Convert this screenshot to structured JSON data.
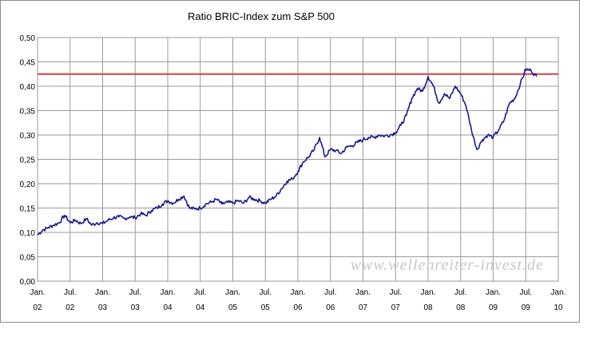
{
  "chart_data": {
    "type": "line",
    "title": "Ratio BRIC-Index zum S&P 500",
    "xlabel": "",
    "ylabel": "",
    "ylim": [
      0.0,
      0.5
    ],
    "yticks": [
      "0,00",
      "0,05",
      "0,10",
      "0,15",
      "0,20",
      "0,25",
      "0,30",
      "0,35",
      "0,40",
      "0,45",
      "0,50"
    ],
    "xticks": [
      {
        "line1": "Jan.",
        "line2": "02"
      },
      {
        "line1": "Jul.",
        "line2": "02"
      },
      {
        "line1": "Jan.",
        "line2": "03"
      },
      {
        "line1": "Jul.",
        "line2": "03"
      },
      {
        "line1": "Jan.",
        "line2": "04"
      },
      {
        "line1": "Jul.",
        "line2": "04"
      },
      {
        "line1": "Jan.",
        "line2": "05"
      },
      {
        "line1": "Jul.",
        "line2": "05"
      },
      {
        "line1": "Jan.",
        "line2": "06"
      },
      {
        "line1": "Jul.",
        "line2": "06"
      },
      {
        "line1": "Jan.",
        "line2": "07"
      },
      {
        "line1": "Jul.",
        "line2": "07"
      },
      {
        "line1": "Jan.",
        "line2": "08"
      },
      {
        "line1": "Jul.",
        "line2": "08"
      },
      {
        "line1": "Jan.",
        "line2": "09"
      },
      {
        "line1": "Jul.",
        "line2": "09"
      },
      {
        "line1": "Jan.",
        "line2": "10"
      }
    ],
    "grid": true,
    "reference_line": {
      "y": 0.425,
      "color": "#e03c3c"
    },
    "series": [
      {
        "color": "#1a1a8c",
        "points": [
          [
            "Jan. 02",
            0.095
          ],
          [
            "Feb. 02",
            0.105
          ],
          [
            "Mar. 02",
            0.11
          ],
          [
            "Apr. 02",
            0.115
          ],
          [
            "May 02",
            0.12
          ],
          [
            "Jun. 02",
            0.135
          ],
          [
            "Jul. 02",
            0.12
          ],
          [
            "Aug. 02",
            0.125
          ],
          [
            "Sep. 02",
            0.118
          ],
          [
            "Oct. 02",
            0.128
          ],
          [
            "Nov. 02",
            0.115
          ],
          [
            "Dec. 02",
            0.12
          ],
          [
            "Jan. 03",
            0.118
          ],
          [
            "Feb. 03",
            0.125
          ],
          [
            "Mar. 03",
            0.13
          ],
          [
            "Apr. 03",
            0.132
          ],
          [
            "May 03",
            0.128
          ],
          [
            "Jun. 03",
            0.132
          ],
          [
            "Jul. 03",
            0.13
          ],
          [
            "Aug. 03",
            0.138
          ],
          [
            "Sep. 03",
            0.135
          ],
          [
            "Oct. 03",
            0.145
          ],
          [
            "Nov. 03",
            0.15
          ],
          [
            "Dec. 03",
            0.158
          ],
          [
            "Jan. 04",
            0.165
          ],
          [
            "Feb. 04",
            0.16
          ],
          [
            "Mar. 04",
            0.168
          ],
          [
            "Apr. 04",
            0.175
          ],
          [
            "May 04",
            0.15
          ],
          [
            "Jun. 04",
            0.148
          ],
          [
            "Jul. 04",
            0.15
          ],
          [
            "Aug. 04",
            0.158
          ],
          [
            "Sep. 04",
            0.162
          ],
          [
            "Oct. 04",
            0.168
          ],
          [
            "Nov. 04",
            0.158
          ],
          [
            "Dec. 04",
            0.162
          ],
          [
            "Jan. 05",
            0.16
          ],
          [
            "Feb. 05",
            0.165
          ],
          [
            "Mar. 05",
            0.16
          ],
          [
            "Apr. 05",
            0.172
          ],
          [
            "May 05",
            0.168
          ],
          [
            "Jun. 05",
            0.165
          ],
          [
            "Jul. 05",
            0.16
          ],
          [
            "Aug. 05",
            0.168
          ],
          [
            "Sep. 05",
            0.175
          ],
          [
            "Oct. 05",
            0.19
          ],
          [
            "Nov. 05",
            0.205
          ],
          [
            "Dec. 05",
            0.21
          ],
          [
            "Jan. 06",
            0.225
          ],
          [
            "Feb. 06",
            0.245
          ],
          [
            "Mar. 06",
            0.255
          ],
          [
            "Apr. 06",
            0.27
          ],
          [
            "May 06",
            0.295
          ],
          [
            "Jun. 06",
            0.255
          ],
          [
            "Jul. 06",
            0.27
          ],
          [
            "Aug. 06",
            0.268
          ],
          [
            "Sep. 06",
            0.262
          ],
          [
            "Oct. 06",
            0.275
          ],
          [
            "Nov. 06",
            0.278
          ],
          [
            "Dec. 06",
            0.285
          ],
          [
            "Jan. 07",
            0.29
          ],
          [
            "Feb. 07",
            0.295
          ],
          [
            "Mar. 07",
            0.295
          ],
          [
            "Apr. 07",
            0.3
          ],
          [
            "May 07",
            0.298
          ],
          [
            "Jun. 07",
            0.3
          ],
          [
            "Jul. 07",
            0.305
          ],
          [
            "Aug. 07",
            0.32
          ],
          [
            "Sep. 07",
            0.34
          ],
          [
            "Oct. 07",
            0.375
          ],
          [
            "Nov. 07",
            0.395
          ],
          [
            "Dec. 07",
            0.39
          ],
          [
            "Jan. 08",
            0.42
          ],
          [
            "Feb. 08",
            0.4
          ],
          [
            "Mar. 08",
            0.365
          ],
          [
            "Apr. 08",
            0.385
          ],
          [
            "May 08",
            0.375
          ],
          [
            "Jun. 08",
            0.4
          ],
          [
            "Jul. 08",
            0.385
          ],
          [
            "Aug. 08",
            0.36
          ],
          [
            "Sep. 08",
            0.31
          ],
          [
            "Oct. 08",
            0.27
          ],
          [
            "Nov. 08",
            0.29
          ],
          [
            "Dec. 08",
            0.3
          ],
          [
            "Jan. 09",
            0.295
          ],
          [
            "Feb. 09",
            0.31
          ],
          [
            "Mar. 09",
            0.33
          ],
          [
            "Apr. 09",
            0.365
          ],
          [
            "May 09",
            0.375
          ],
          [
            "Jun. 09",
            0.405
          ],
          [
            "Jul. 09",
            0.435
          ],
          [
            "Aug. 09",
            0.432
          ],
          [
            "Sep. 09",
            0.42
          ]
        ]
      }
    ],
    "watermark": "www.wellenreiter-invest.de"
  }
}
